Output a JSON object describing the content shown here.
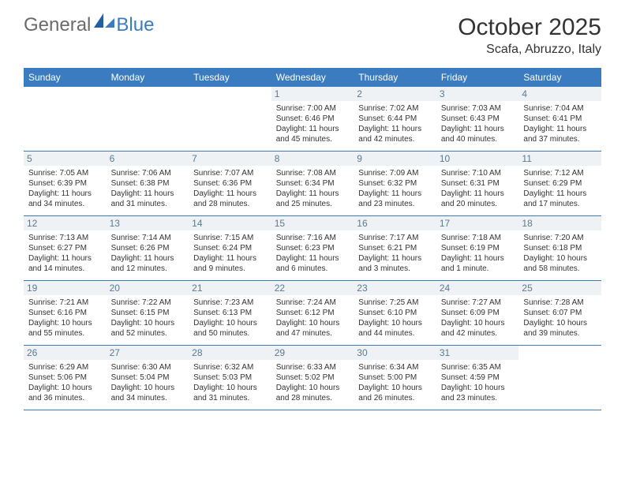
{
  "brand": {
    "part1": "General",
    "part2": "Blue"
  },
  "title": "October 2025",
  "location": "Scafa, Abruzzo, Italy",
  "colors": {
    "header_bg": "#3b7bbf",
    "header_text": "#ffffff",
    "daynum_bg": "#eef2f5",
    "daynum_text": "#5a7a8f",
    "body_text": "#333333",
    "rule": "#3b7bbf"
  },
  "day_labels": [
    "Sunday",
    "Monday",
    "Tuesday",
    "Wednesday",
    "Thursday",
    "Friday",
    "Saturday"
  ],
  "weeks": [
    [
      {
        "n": "",
        "empty": true
      },
      {
        "n": "",
        "empty": true
      },
      {
        "n": "",
        "empty": true
      },
      {
        "n": "1",
        "sr": "Sunrise: 7:00 AM",
        "ss": "Sunset: 6:46 PM",
        "d1": "Daylight: 11 hours",
        "d2": "and 45 minutes."
      },
      {
        "n": "2",
        "sr": "Sunrise: 7:02 AM",
        "ss": "Sunset: 6:44 PM",
        "d1": "Daylight: 11 hours",
        "d2": "and 42 minutes."
      },
      {
        "n": "3",
        "sr": "Sunrise: 7:03 AM",
        "ss": "Sunset: 6:43 PM",
        "d1": "Daylight: 11 hours",
        "d2": "and 40 minutes."
      },
      {
        "n": "4",
        "sr": "Sunrise: 7:04 AM",
        "ss": "Sunset: 6:41 PM",
        "d1": "Daylight: 11 hours",
        "d2": "and 37 minutes."
      }
    ],
    [
      {
        "n": "5",
        "sr": "Sunrise: 7:05 AM",
        "ss": "Sunset: 6:39 PM",
        "d1": "Daylight: 11 hours",
        "d2": "and 34 minutes."
      },
      {
        "n": "6",
        "sr": "Sunrise: 7:06 AM",
        "ss": "Sunset: 6:38 PM",
        "d1": "Daylight: 11 hours",
        "d2": "and 31 minutes."
      },
      {
        "n": "7",
        "sr": "Sunrise: 7:07 AM",
        "ss": "Sunset: 6:36 PM",
        "d1": "Daylight: 11 hours",
        "d2": "and 28 minutes."
      },
      {
        "n": "8",
        "sr": "Sunrise: 7:08 AM",
        "ss": "Sunset: 6:34 PM",
        "d1": "Daylight: 11 hours",
        "d2": "and 25 minutes."
      },
      {
        "n": "9",
        "sr": "Sunrise: 7:09 AM",
        "ss": "Sunset: 6:32 PM",
        "d1": "Daylight: 11 hours",
        "d2": "and 23 minutes."
      },
      {
        "n": "10",
        "sr": "Sunrise: 7:10 AM",
        "ss": "Sunset: 6:31 PM",
        "d1": "Daylight: 11 hours",
        "d2": "and 20 minutes."
      },
      {
        "n": "11",
        "sr": "Sunrise: 7:12 AM",
        "ss": "Sunset: 6:29 PM",
        "d1": "Daylight: 11 hours",
        "d2": "and 17 minutes."
      }
    ],
    [
      {
        "n": "12",
        "sr": "Sunrise: 7:13 AM",
        "ss": "Sunset: 6:27 PM",
        "d1": "Daylight: 11 hours",
        "d2": "and 14 minutes."
      },
      {
        "n": "13",
        "sr": "Sunrise: 7:14 AM",
        "ss": "Sunset: 6:26 PM",
        "d1": "Daylight: 11 hours",
        "d2": "and 12 minutes."
      },
      {
        "n": "14",
        "sr": "Sunrise: 7:15 AM",
        "ss": "Sunset: 6:24 PM",
        "d1": "Daylight: 11 hours",
        "d2": "and 9 minutes."
      },
      {
        "n": "15",
        "sr": "Sunrise: 7:16 AM",
        "ss": "Sunset: 6:23 PM",
        "d1": "Daylight: 11 hours",
        "d2": "and 6 minutes."
      },
      {
        "n": "16",
        "sr": "Sunrise: 7:17 AM",
        "ss": "Sunset: 6:21 PM",
        "d1": "Daylight: 11 hours",
        "d2": "and 3 minutes."
      },
      {
        "n": "17",
        "sr": "Sunrise: 7:18 AM",
        "ss": "Sunset: 6:19 PM",
        "d1": "Daylight: 11 hours",
        "d2": "and 1 minute."
      },
      {
        "n": "18",
        "sr": "Sunrise: 7:20 AM",
        "ss": "Sunset: 6:18 PM",
        "d1": "Daylight: 10 hours",
        "d2": "and 58 minutes."
      }
    ],
    [
      {
        "n": "19",
        "sr": "Sunrise: 7:21 AM",
        "ss": "Sunset: 6:16 PM",
        "d1": "Daylight: 10 hours",
        "d2": "and 55 minutes."
      },
      {
        "n": "20",
        "sr": "Sunrise: 7:22 AM",
        "ss": "Sunset: 6:15 PM",
        "d1": "Daylight: 10 hours",
        "d2": "and 52 minutes."
      },
      {
        "n": "21",
        "sr": "Sunrise: 7:23 AM",
        "ss": "Sunset: 6:13 PM",
        "d1": "Daylight: 10 hours",
        "d2": "and 50 minutes."
      },
      {
        "n": "22",
        "sr": "Sunrise: 7:24 AM",
        "ss": "Sunset: 6:12 PM",
        "d1": "Daylight: 10 hours",
        "d2": "and 47 minutes."
      },
      {
        "n": "23",
        "sr": "Sunrise: 7:25 AM",
        "ss": "Sunset: 6:10 PM",
        "d1": "Daylight: 10 hours",
        "d2": "and 44 minutes."
      },
      {
        "n": "24",
        "sr": "Sunrise: 7:27 AM",
        "ss": "Sunset: 6:09 PM",
        "d1": "Daylight: 10 hours",
        "d2": "and 42 minutes."
      },
      {
        "n": "25",
        "sr": "Sunrise: 7:28 AM",
        "ss": "Sunset: 6:07 PM",
        "d1": "Daylight: 10 hours",
        "d2": "and 39 minutes."
      }
    ],
    [
      {
        "n": "26",
        "sr": "Sunrise: 6:29 AM",
        "ss": "Sunset: 5:06 PM",
        "d1": "Daylight: 10 hours",
        "d2": "and 36 minutes."
      },
      {
        "n": "27",
        "sr": "Sunrise: 6:30 AM",
        "ss": "Sunset: 5:04 PM",
        "d1": "Daylight: 10 hours",
        "d2": "and 34 minutes."
      },
      {
        "n": "28",
        "sr": "Sunrise: 6:32 AM",
        "ss": "Sunset: 5:03 PM",
        "d1": "Daylight: 10 hours",
        "d2": "and 31 minutes."
      },
      {
        "n": "29",
        "sr": "Sunrise: 6:33 AM",
        "ss": "Sunset: 5:02 PM",
        "d1": "Daylight: 10 hours",
        "d2": "and 28 minutes."
      },
      {
        "n": "30",
        "sr": "Sunrise: 6:34 AM",
        "ss": "Sunset: 5:00 PM",
        "d1": "Daylight: 10 hours",
        "d2": "and 26 minutes."
      },
      {
        "n": "31",
        "sr": "Sunrise: 6:35 AM",
        "ss": "Sunset: 4:59 PM",
        "d1": "Daylight: 10 hours",
        "d2": "and 23 minutes."
      },
      {
        "n": "",
        "empty": true
      }
    ]
  ]
}
